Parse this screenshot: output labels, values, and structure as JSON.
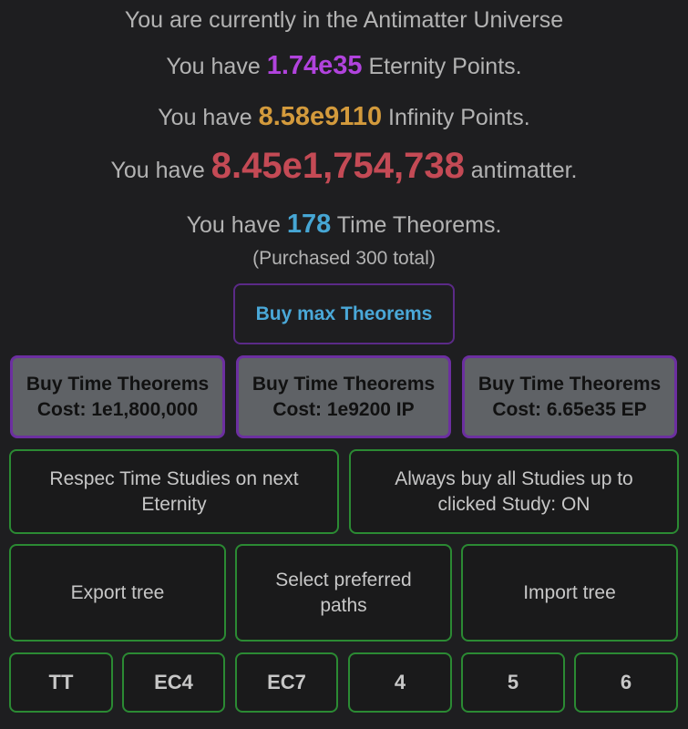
{
  "header": {
    "universe_text": "You are currently in the Antimatter Universe"
  },
  "resources": {
    "prefix": "You have",
    "eternity_points": "1.74e35",
    "ep_suffix": "Eternity Points.",
    "infinity_points": "8.58e9110",
    "ip_suffix": "Infinity Points.",
    "antimatter": "8.45e1,754,738",
    "am_suffix": "antimatter.",
    "time_theorems": "178",
    "tt_suffix": "Time Theorems.",
    "purchased_total": "(Purchased 300 total)"
  },
  "colors": {
    "ep": "#b143dd",
    "ip": "#d39a3c",
    "antimatter": "#c44a55",
    "tt": "#46a6d4",
    "accent_green": "#2b8a33",
    "accent_purple": "#6c2fa0"
  },
  "buttons": {
    "buy_max": "Buy max Theorems",
    "buy_tt": [
      {
        "label": "Buy Time Theorems",
        "cost": "Cost: 1e1,800,000"
      },
      {
        "label": "Buy Time Theorems",
        "cost": "Cost: 1e9200 IP"
      },
      {
        "label": "Buy Time Theorems",
        "cost": "Cost: 6.65e35 EP"
      }
    ],
    "respec": "Respec Time Studies on next Eternity",
    "always_buy": "Always buy all Studies up to clicked Study: ON",
    "export": "Export tree",
    "preferred": "Select preferred paths",
    "import": "Import tree",
    "presets": [
      "TT",
      "EC4",
      "EC7",
      "4",
      "5",
      "6"
    ]
  }
}
